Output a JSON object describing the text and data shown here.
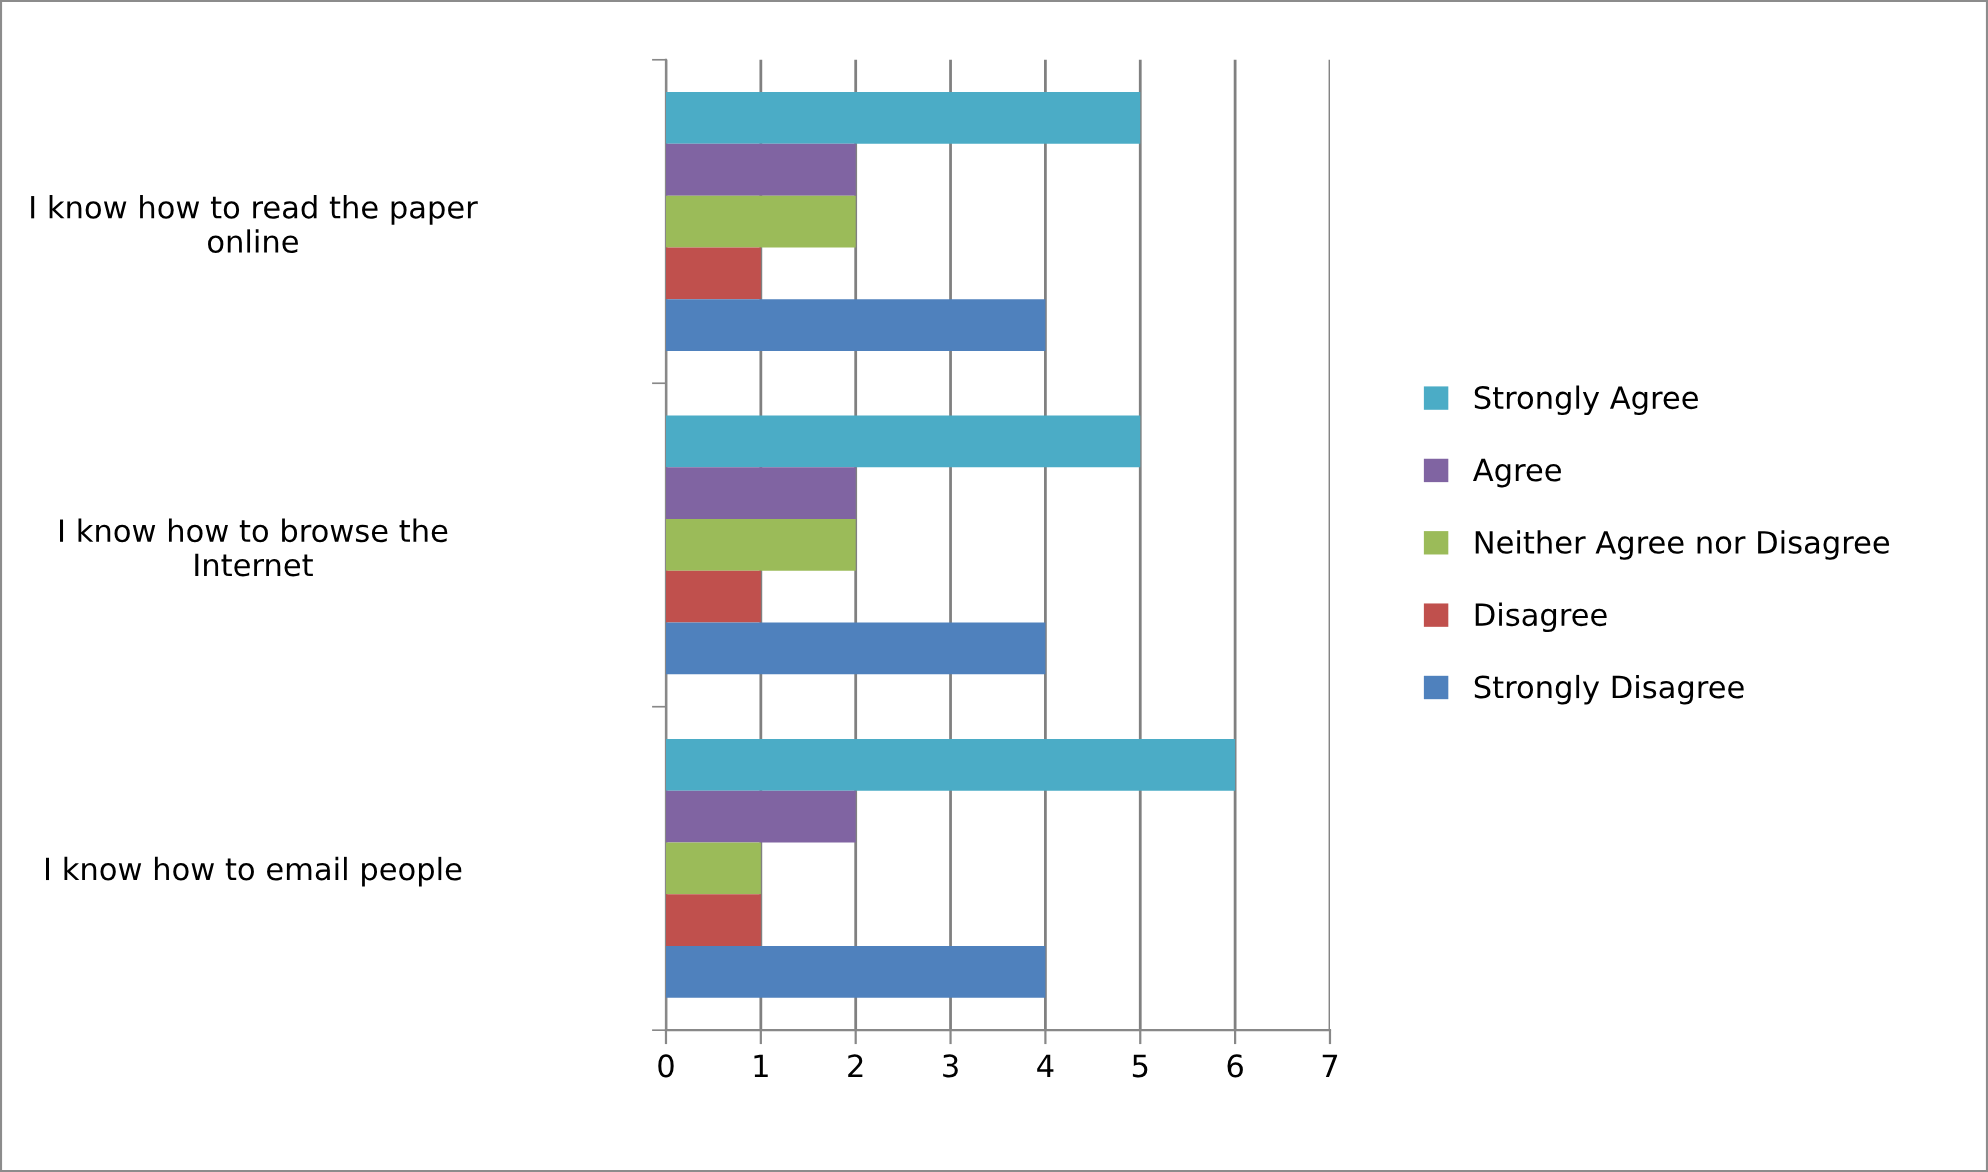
{
  "chart_data": {
    "type": "bar",
    "orientation": "horizontal",
    "categories": [
      "I know how to read the paper online",
      "I know how to browse the Internet",
      "I know how to email people"
    ],
    "series": [
      {
        "name": "Strongly Agree",
        "color": "#4bacc6",
        "values": [
          5,
          5,
          6
        ]
      },
      {
        "name": "Agree",
        "color": "#8064a2",
        "values": [
          2,
          2,
          2
        ]
      },
      {
        "name": "Neither Agree nor Disagree",
        "color": "#9bbb59",
        "values": [
          2,
          2,
          1
        ]
      },
      {
        "name": "Disagree",
        "color": "#c0504d",
        "values": [
          1,
          1,
          1
        ]
      },
      {
        "name": "Strongly Disagree",
        "color": "#4f81bd",
        "values": [
          4,
          4,
          4
        ]
      }
    ],
    "xlim": [
      0,
      7
    ],
    "xticks": [
      0,
      1,
      2,
      3,
      4,
      5,
      6,
      7
    ],
    "grid": "x",
    "legend": "right"
  }
}
